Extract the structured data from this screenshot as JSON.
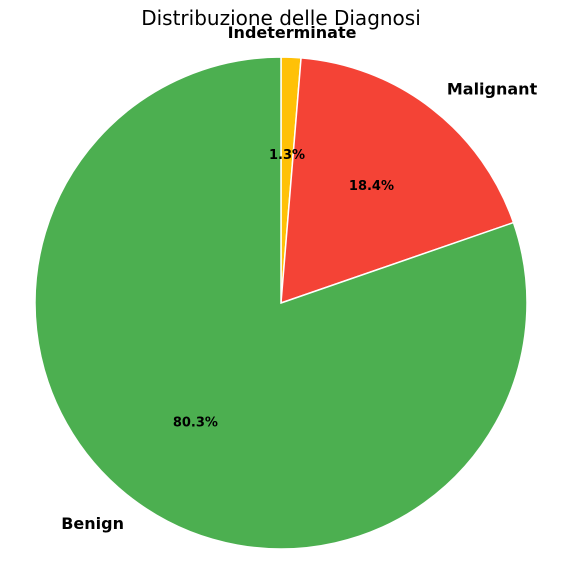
{
  "chart_data": {
    "type": "pie",
    "title": "Distribuzione delle Diagnosi",
    "slices": [
      {
        "label": "Indeterminate",
        "value": 1.3,
        "display": "1.3%",
        "color": "#FFC107"
      },
      {
        "label": "Malignant",
        "value": 18.4,
        "display": "18.4%",
        "color": "#F44336"
      },
      {
        "label": "Benign",
        "value": 80.3,
        "display": "80.3%",
        "color": "#4CAF50"
      }
    ],
    "start_angle": "top (90°)",
    "direction": "clockwise",
    "edge_color": "#FFFFFF"
  }
}
